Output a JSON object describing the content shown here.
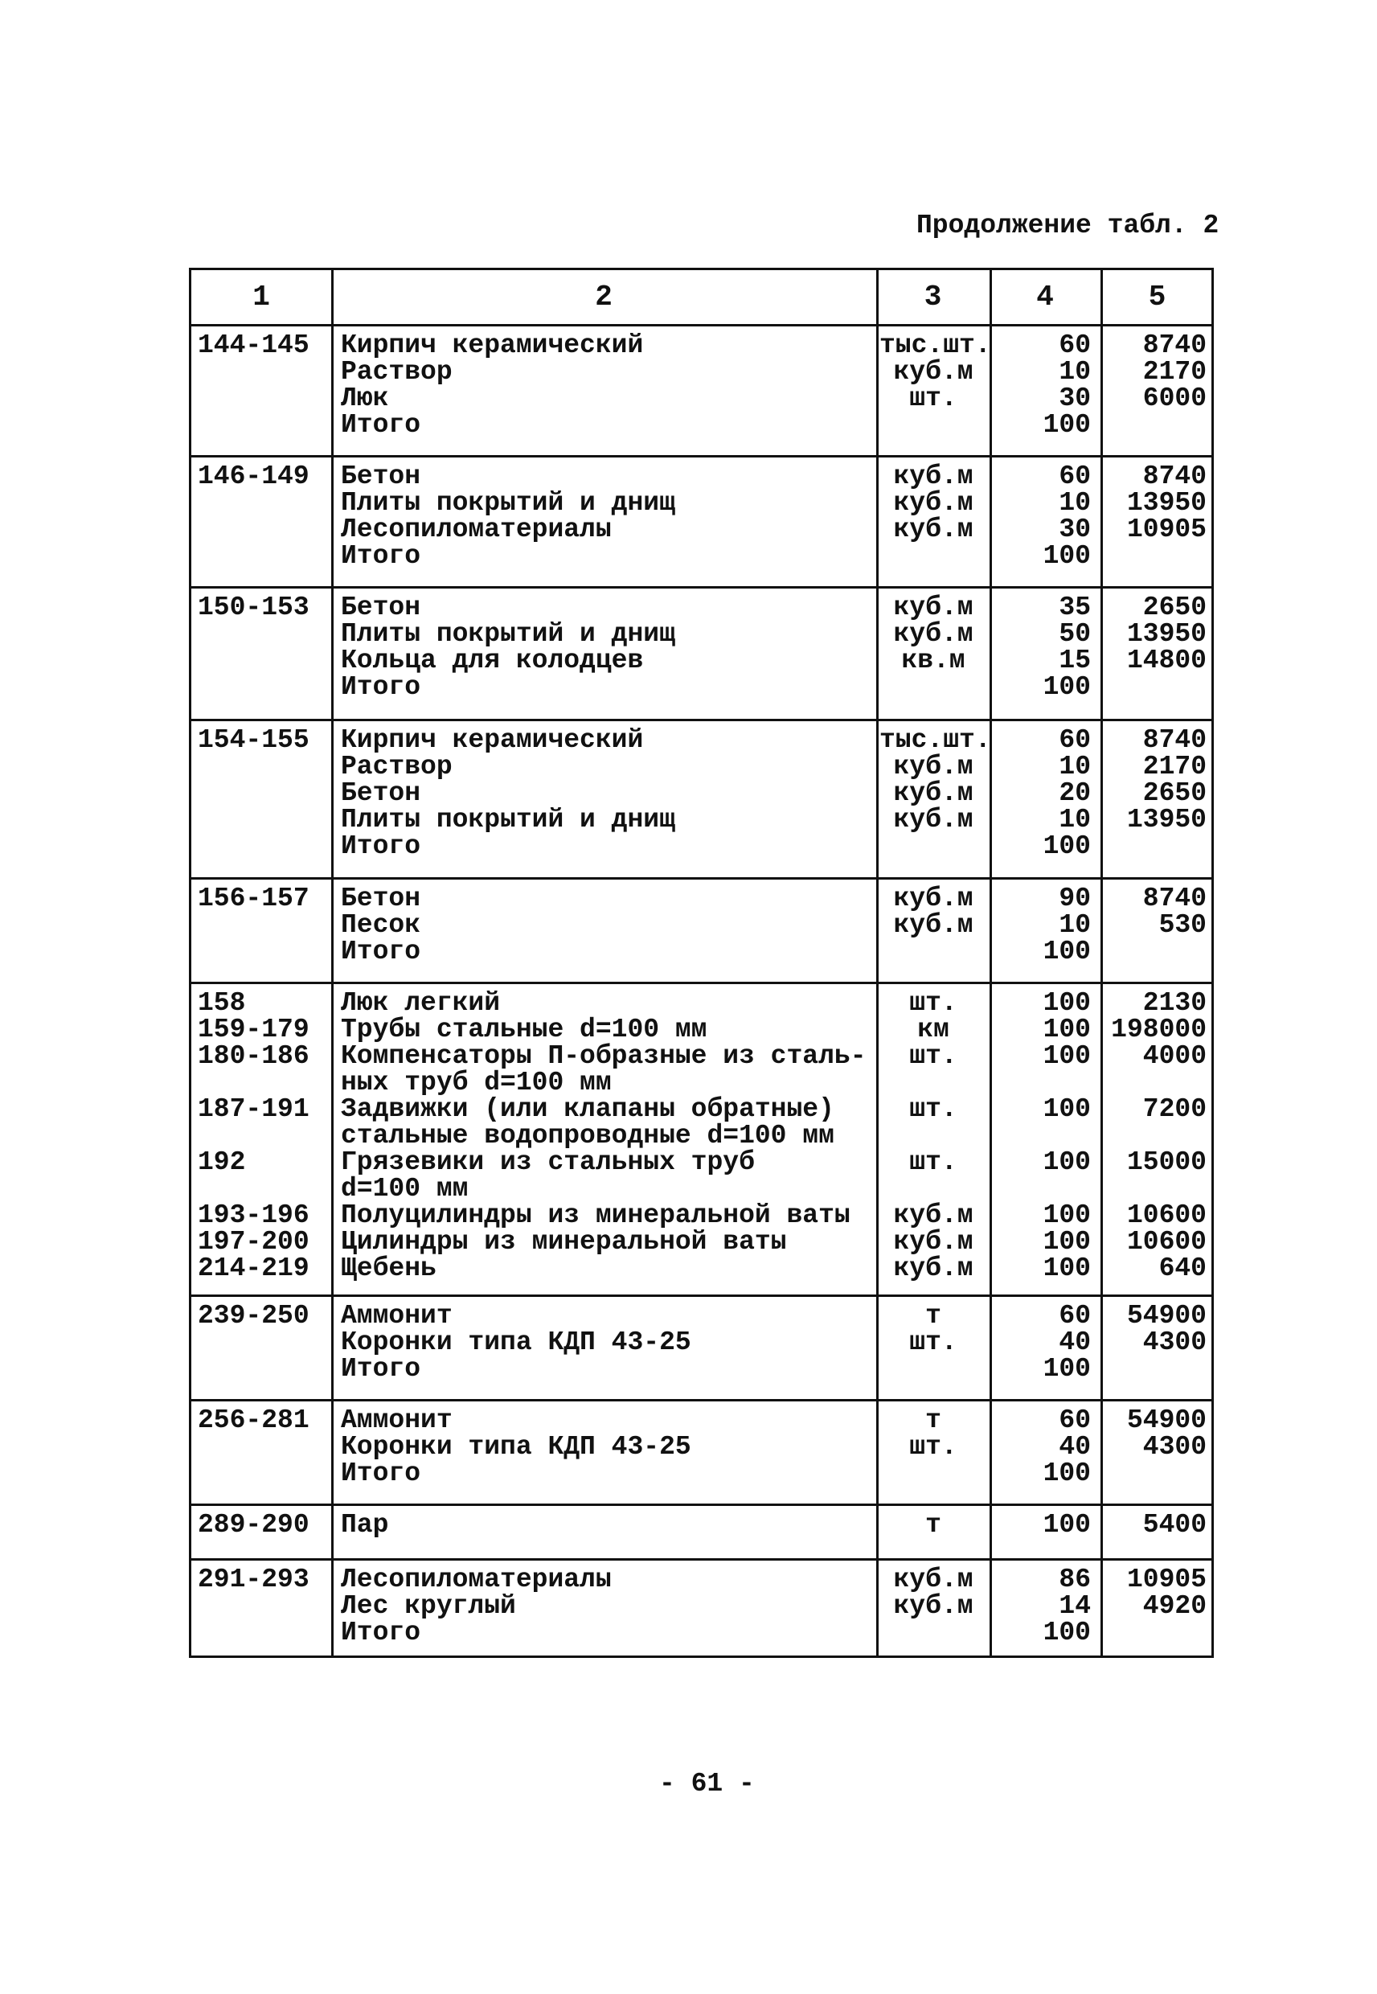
{
  "heading": "Продолжение табл. 2",
  "page_number": "- 61 -",
  "table": {
    "headers": [
      "1",
      "2",
      "3",
      "4",
      "5"
    ],
    "groups": [
      {
        "lines": [
          {
            "code": "144-145",
            "name": "Кирпич керамический",
            "unit": "тыс.шт.",
            "qty": "60",
            "price": "8740"
          },
          {
            "code": "",
            "name": "Раствор",
            "unit": "куб.м",
            "qty": "10",
            "price": "2170"
          },
          {
            "code": "",
            "name": "Люк",
            "unit": "шт.",
            "qty": "30",
            "price": "6000"
          },
          {
            "code": "",
            "name": "Итого",
            "unit": "",
            "qty": "100",
            "price": ""
          }
        ]
      },
      {
        "lines": [
          {
            "code": "146-149",
            "name": "Бетон",
            "unit": "куб.м",
            "qty": "60",
            "price": "8740"
          },
          {
            "code": "",
            "name": "Плиты покрытий и днищ",
            "unit": "куб.м",
            "qty": "10",
            "price": "13950"
          },
          {
            "code": "",
            "name": "Лесопиломатериалы",
            "unit": "куб.м",
            "qty": "30",
            "price": "10905"
          },
          {
            "code": "",
            "name": "Итого",
            "unit": "",
            "qty": "100",
            "price": ""
          }
        ]
      },
      {
        "lines": [
          {
            "code": "150-153",
            "name": "Бетон",
            "unit": "куб.м",
            "qty": "35",
            "price": "2650"
          },
          {
            "code": "",
            "name": "Плиты покрытий и днищ",
            "unit": "куб.м",
            "qty": "50",
            "price": "13950"
          },
          {
            "code": "",
            "name": "Кольца для колодцев",
            "unit": "кв.м",
            "qty": "15",
            "price": "14800"
          },
          {
            "code": "",
            "name": "Итого",
            "unit": "",
            "qty": "100",
            "price": ""
          }
        ]
      },
      {
        "lines": [
          {
            "code": "154-155",
            "name": "Кирпич керамический",
            "unit": "тыс.шт.",
            "qty": "60",
            "price": "8740"
          },
          {
            "code": "",
            "name": "Раствор",
            "unit": "куб.м",
            "qty": "10",
            "price": "2170"
          },
          {
            "code": "",
            "name": "Бетон",
            "unit": "куб.м",
            "qty": "20",
            "price": "2650"
          },
          {
            "code": "",
            "name": "Плиты покрытий и днищ",
            "unit": "куб.м",
            "qty": "10",
            "price": "13950"
          },
          {
            "code": "",
            "name": "Итого",
            "unit": "",
            "qty": "100",
            "price": ""
          }
        ]
      },
      {
        "lines": [
          {
            "code": "156-157",
            "name": "Бетон",
            "unit": "куб.м",
            "qty": "90",
            "price": "8740"
          },
          {
            "code": "",
            "name": "Песок",
            "unit": "куб.м",
            "qty": "10",
            "price": "530"
          },
          {
            "code": "",
            "name": "Итого",
            "unit": "",
            "qty": "100",
            "price": ""
          }
        ]
      },
      {
        "lines": [
          {
            "code": "158",
            "name": "Люк легкий",
            "unit": "шт.",
            "qty": "100",
            "price": "2130"
          },
          {
            "code": "159-179",
            "name": "Трубы стальные d=100 мм",
            "unit": "км",
            "qty": "100",
            "price": "198000"
          },
          {
            "code": "180-186",
            "name": "Компенсаторы П-образные из сталь-",
            "unit": "шт.",
            "qty": "100",
            "price": "4000"
          },
          {
            "code": "",
            "name": "ных труб d=100 мм",
            "unit": "",
            "qty": "",
            "price": ""
          },
          {
            "code": "187-191",
            "name": "Задвижки (или клапаны обратные)",
            "unit": "шт.",
            "qty": "100",
            "price": "7200"
          },
          {
            "code": "",
            "name": "стальные водопроводные d=100 мм",
            "unit": "",
            "qty": "",
            "price": ""
          },
          {
            "code": "192",
            "name": "Грязевики из стальных труб",
            "unit": "шт.",
            "qty": "100",
            "price": "15000"
          },
          {
            "code": "",
            "name": "d=100 мм",
            "unit": "",
            "qty": "",
            "price": ""
          },
          {
            "code": "193-196",
            "name": "Полуцилиндры из минеральной ваты",
            "unit": "куб.м",
            "qty": "100",
            "price": "10600"
          },
          {
            "code": "197-200",
            "name": "Цилиндры из минеральной ваты",
            "unit": "куб.м",
            "qty": "100",
            "price": "10600"
          },
          {
            "code": "214-219",
            "name": "Щебень",
            "unit": "куб.м",
            "qty": "100",
            "price": "640"
          }
        ]
      },
      {
        "lines": [
          {
            "code": "239-250",
            "name": "Аммонит",
            "unit": "т",
            "qty": "60",
            "price": "54900"
          },
          {
            "code": "",
            "name": "Коронки типа КДП 43-25",
            "unit": "шт.",
            "qty": "40",
            "price": "4300"
          },
          {
            "code": "",
            "name": "Итого",
            "unit": "",
            "qty": "100",
            "price": ""
          }
        ]
      },
      {
        "lines": [
          {
            "code": "256-281",
            "name": "Аммонит",
            "unit": "т",
            "qty": "60",
            "price": "54900"
          },
          {
            "code": "",
            "name": "Коронки типа КДП 43-25",
            "unit": "шт.",
            "qty": "40",
            "price": "4300"
          },
          {
            "code": "",
            "name": "Итого",
            "unit": "",
            "qty": "100",
            "price": ""
          }
        ]
      },
      {
        "lines": [
          {
            "code": "289-290",
            "name": "Пар",
            "unit": "т",
            "qty": "100",
            "price": "5400"
          }
        ]
      },
      {
        "lines": [
          {
            "code": "291-293",
            "name": "Лесопиломатериалы",
            "unit": "куб.м",
            "qty": "86",
            "price": "10905"
          },
          {
            "code": "",
            "name": "Лес круглый",
            "unit": "куб.м",
            "qty": "14",
            "price": "4920"
          },
          {
            "code": "",
            "name": "Итого",
            "unit": "",
            "qty": "100",
            "price": ""
          }
        ]
      }
    ]
  }
}
